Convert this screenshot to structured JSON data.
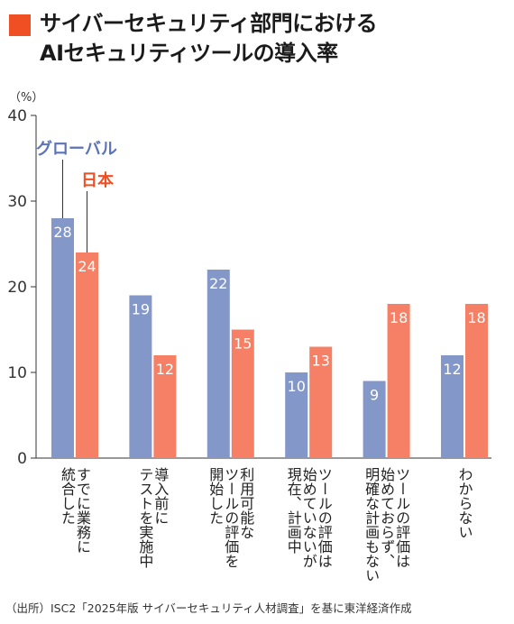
{
  "title": {
    "line1": "サイバーセキュリティ部門における",
    "line2": "AIセキュリティツールの導入率"
  },
  "source": "（出所）ISC2「2025年版 サイバーセキュリティ人材調査」を基に東洋経済作成",
  "colors": {
    "global": "#8497c9",
    "japan": "#f58066",
    "accent": "#f04e23",
    "global_label": "#5b73b8",
    "japan_label": "#f04e23"
  },
  "chart_data": {
    "type": "bar",
    "y_unit_label": "（%）",
    "ylim": [
      0,
      40
    ],
    "yticks": [
      0,
      10,
      20,
      30,
      40
    ],
    "grid": false,
    "legend": "inline callouts on first category",
    "categories": [
      [
        "すでに業務に",
        "統合した"
      ],
      [
        "導入前に",
        "テストを実施中"
      ],
      [
        "利用可能な",
        "ツールの評価を",
        "開始した"
      ],
      [
        "ツールの評価は",
        "始めていないが",
        "現在、計画中"
      ],
      [
        "ツールの評価は",
        "始めておらず、",
        "明確な計画もない"
      ],
      [
        "わからない"
      ]
    ],
    "series": [
      {
        "name": "グローバル",
        "values": [
          28,
          19,
          22,
          10,
          9,
          12
        ]
      },
      {
        "name": "日本",
        "values": [
          24,
          12,
          15,
          13,
          18,
          18
        ]
      }
    ]
  }
}
